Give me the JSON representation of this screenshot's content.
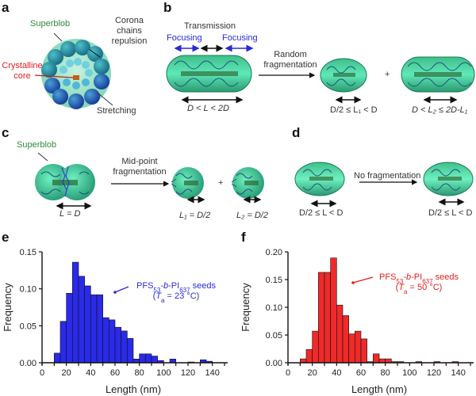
{
  "panels": {
    "a": {
      "letter": "a",
      "labels": {
        "superblob": "Superblob",
        "corona": [
          "Corona",
          "chains",
          "repulsion"
        ],
        "crystalline": [
          "Crystalline",
          "core"
        ],
        "stretching": "Stretching"
      }
    },
    "b": {
      "letter": "b",
      "transmission": "Transmission",
      "focusing_left": "Focusing",
      "focusing_right": "Focusing",
      "process": [
        "Random",
        "fragmentation"
      ],
      "plus": "+",
      "cond_parent": "D < L < 2D",
      "cond_child1": "D/2 ≤ L₁ < D",
      "cond_child2": "D < L₂ ≤ 2D-L₁"
    },
    "c": {
      "letter": "c",
      "superblob": "Superblob",
      "process": [
        "Mid-point",
        "fragmentation"
      ],
      "plus": "+",
      "cond_parent": "L = D",
      "cond_child1": "L₁ = D/2",
      "cond_child2": "L₂ = D/2"
    },
    "d": {
      "letter": "d",
      "process": "No fragmentation",
      "cond_parent": "D/2 ≤ L < D",
      "cond_child": "D/2 ≤ L < D"
    },
    "e": {
      "letter": "e"
    },
    "f": {
      "letter": "f"
    }
  },
  "colors": {
    "blob": "#3fd4a0",
    "blob_dark": "#1b8a6a",
    "chain": "#1d4f7a",
    "hist_e": "#2a2ae8",
    "hist_f": "#ee2a2a",
    "label_green": "#2e8b3a",
    "label_red": "#e02020",
    "label_blue": "#2a2ad8"
  },
  "chart_data": [
    {
      "type": "bar",
      "panel": "e",
      "title": "",
      "xlabel": "Length (nm)",
      "ylabel": "Frequency",
      "xlim": [
        0,
        150
      ],
      "ylim": [
        0,
        0.15
      ],
      "xticks": [
        "0",
        "20",
        "40",
        "60",
        "80",
        "100",
        "120",
        "140"
      ],
      "yticks": [
        "0.00",
        "0.05",
        "0.10",
        "0.15"
      ],
      "ytick_values": [
        0,
        0.05,
        0.1,
        0.15
      ],
      "xtick_values": [
        0,
        20,
        40,
        60,
        80,
        100,
        120,
        140
      ],
      "bin_width": 5,
      "bin_starts": [
        10,
        15,
        20,
        25,
        30,
        35,
        40,
        45,
        50,
        55,
        60,
        65,
        70,
        75,
        80,
        85,
        90,
        95,
        100,
        105,
        110,
        115,
        120,
        125,
        130,
        135
      ],
      "values": [
        0.013,
        0.056,
        0.094,
        0.136,
        0.117,
        0.104,
        0.092,
        0.092,
        0.061,
        0.058,
        0.048,
        0.043,
        0.033,
        0.005,
        0.012,
        0.012,
        0.009,
        0.003,
        0,
        0.005,
        0,
        0,
        0.001,
        0,
        0.004,
        0.002
      ],
      "annotation": {
        "line1_main": "PFS",
        "line1_sub1": "53",
        "line1_mid": "-b-PI",
        "line1_sub2": "637",
        "line1_end": " seeds",
        "line2": "(T",
        "line2_sub": "a",
        "line2_end": " = 23 °C)"
      },
      "grid": false
    },
    {
      "type": "bar",
      "panel": "f",
      "title": "",
      "xlabel": "Length (nm)",
      "ylabel": "Frequency",
      "xlim": [
        0,
        150
      ],
      "ylim": [
        0,
        0.2
      ],
      "xticks": [
        "0",
        "20",
        "40",
        "60",
        "80",
        "100",
        "120",
        "140"
      ],
      "yticks": [
        "0.00",
        "0.05",
        "0.10",
        "0.15",
        "0.20"
      ],
      "ytick_values": [
        0,
        0.05,
        0.1,
        0.15,
        0.2
      ],
      "xtick_values": [
        0,
        20,
        40,
        60,
        80,
        100,
        120,
        140
      ],
      "bin_width": 5,
      "bin_starts": [
        10,
        15,
        20,
        25,
        30,
        35,
        40,
        45,
        50,
        55,
        60,
        65,
        70,
        75,
        80,
        85,
        90,
        95,
        100,
        105,
        110,
        115,
        120,
        125,
        130,
        135
      ],
      "values": [
        0.007,
        0.024,
        0.057,
        0.163,
        0.163,
        0.189,
        0.104,
        0.085,
        0.052,
        0.057,
        0.043,
        0.002,
        0.016,
        0.007,
        0.007,
        0.002,
        0.002,
        0,
        0,
        0.002,
        0,
        0,
        0.002,
        0,
        0,
        0.002
      ],
      "annotation": {
        "line1_main": "PFS",
        "line1_sub1": "53",
        "line1_mid": "-b-PI",
        "line1_sub2": "637",
        "line1_end": " seeds",
        "line2": "(T",
        "line2_sub": "a",
        "line2_end": " = 50 °C)"
      },
      "grid": false
    }
  ]
}
